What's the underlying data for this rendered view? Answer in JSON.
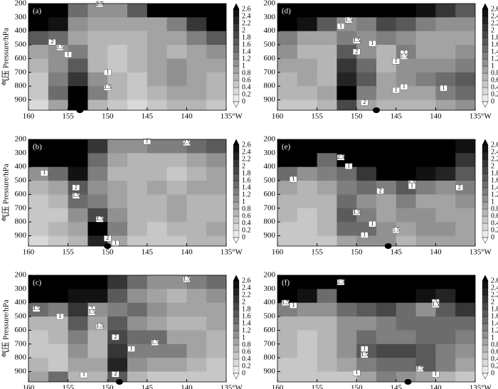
{
  "chart_data": [
    {
      "type": "heatmap",
      "panel_label": "(a)",
      "ylabel": "气压 Pressure/hPa",
      "x_unit": "°W",
      "x": [
        158.75,
        156.25,
        153.75,
        151.25,
        148.75,
        146.25,
        143.75,
        141.25,
        138.75,
        136.25
      ],
      "y": [
        250,
        350,
        450,
        550,
        650,
        750,
        850,
        950
      ],
      "values": [
        [
          2.6,
          2.6,
          1.4,
          1.0,
          1.0,
          1.6,
          2.6,
          2.6,
          2.6,
          2.6
        ],
        [
          2.6,
          2.4,
          1.0,
          0.8,
          0.8,
          0.8,
          0.8,
          1.2,
          2.0,
          2.6
        ],
        [
          1.6,
          1.4,
          0.8,
          0.6,
          0.6,
          0.6,
          0.8,
          0.8,
          1.2,
          1.6
        ],
        [
          0.8,
          1.0,
          1.2,
          0.6,
          0.4,
          0.6,
          0.8,
          0.6,
          0.8,
          1.0
        ],
        [
          0.6,
          1.0,
          1.6,
          0.6,
          0.4,
          0.6,
          0.8,
          1.0,
          0.8,
          0.8
        ],
        [
          0.4,
          1.2,
          2.0,
          1.0,
          0.6,
          0.4,
          0.8,
          1.0,
          0.8,
          0.6
        ],
        [
          0.4,
          1.4,
          2.6,
          1.2,
          0.6,
          0.4,
          0.6,
          0.8,
          0.8,
          0.6
        ],
        [
          0.2,
          0.8,
          2.6,
          0.6,
          0.4,
          0.2,
          0.4,
          0.6,
          0.6,
          0.4
        ]
      ],
      "xlim": [
        160,
        135
      ],
      "ylim": [
        200,
        975
      ],
      "xticks": [
        160,
        155,
        150,
        145,
        140,
        135
      ],
      "yticks": [
        200,
        300,
        400,
        500,
        600,
        700,
        800,
        900
      ],
      "clim": [
        0,
        2.6
      ],
      "cticks": [
        0,
        0.2,
        0.4,
        0.6,
        0.8,
        1,
        1.2,
        1.4,
        1.6,
        1.8,
        2,
        2.2,
        2.4,
        2.6
      ],
      "marker_x": 153.5,
      "annotations": [
        {
          "text": "2.5",
          "x": 151,
          "y": 205
        },
        {
          "text": "2",
          "x": 157,
          "y": 480
        },
        {
          "text": "1.5",
          "x": 156,
          "y": 520
        },
        {
          "text": "1",
          "x": 155,
          "y": 570
        },
        {
          "text": "1",
          "x": 150,
          "y": 700
        },
        {
          "text": "1.5",
          "x": 150,
          "y": 810
        }
      ]
    },
    {
      "type": "heatmap",
      "panel_label": "(d)",
      "x_unit": "°W",
      "x": [
        158.75,
        156.25,
        153.75,
        151.25,
        148.75,
        146.25,
        143.75,
        141.25,
        138.75,
        136.25
      ],
      "y": [
        250,
        350,
        450,
        550,
        650,
        750,
        850,
        950
      ],
      "values": [
        [
          2.6,
          2.6,
          2.6,
          2.6,
          2.6,
          2.6,
          2.6,
          2.4,
          2.0,
          1.6
        ],
        [
          2.6,
          2.4,
          1.6,
          1.0,
          1.2,
          1.8,
          1.6,
          1.2,
          1.0,
          1.0
        ],
        [
          1.2,
          0.8,
          0.8,
          1.2,
          1.0,
          1.2,
          1.0,
          0.8,
          0.8,
          0.8
        ],
        [
          1.0,
          0.6,
          0.6,
          1.6,
          1.0,
          0.6,
          1.2,
          0.8,
          0.8,
          1.0
        ],
        [
          0.8,
          0.8,
          0.6,
          2.0,
          1.4,
          0.6,
          1.0,
          1.0,
          1.0,
          1.2
        ],
        [
          0.6,
          0.8,
          0.6,
          2.2,
          1.6,
          0.8,
          1.0,
          1.2,
          1.4,
          1.6
        ],
        [
          0.6,
          0.6,
          0.8,
          2.6,
          1.2,
          0.8,
          0.8,
          0.8,
          1.2,
          1.4
        ],
        [
          0.4,
          0.4,
          0.6,
          1.8,
          0.8,
          0.6,
          0.6,
          0.6,
          0.8,
          1.0
        ]
      ],
      "xlim": [
        160,
        135
      ],
      "ylim": [
        200,
        975
      ],
      "xticks": [
        160,
        155,
        150,
        145,
        140,
        135
      ],
      "yticks": [
        200,
        300,
        400,
        500,
        600,
        700,
        800,
        900
      ],
      "clim": [
        0,
        2.6
      ],
      "cticks": [
        0,
        0.2,
        0.4,
        0.6,
        0.8,
        1,
        1.2,
        1.4,
        1.6,
        1.8,
        2,
        2.2,
        2.4,
        2.6
      ],
      "marker_x": 147.5,
      "annotations": [
        {
          "text": "1.5",
          "x": 151,
          "y": 320
        },
        {
          "text": "1",
          "x": 152,
          "y": 365
        },
        {
          "text": "1.5",
          "x": 150,
          "y": 470
        },
        {
          "text": "1",
          "x": 148,
          "y": 490
        },
        {
          "text": "2",
          "x": 150,
          "y": 550
        },
        {
          "text": "2",
          "x": 144,
          "y": 560
        },
        {
          "text": "1.5",
          "x": 144,
          "y": 585
        },
        {
          "text": "1",
          "x": 145,
          "y": 620
        },
        {
          "text": "1",
          "x": 144,
          "y": 805
        },
        {
          "text": "1",
          "x": 145,
          "y": 830
        },
        {
          "text": "1",
          "x": 139,
          "y": 815
        },
        {
          "text": "2",
          "x": 149,
          "y": 920
        }
      ]
    },
    {
      "type": "heatmap",
      "panel_label": "(b)",
      "ylabel": "气压 Pressure/hPa",
      "x_unit": "°W",
      "x": [
        158.75,
        156.25,
        153.75,
        151.25,
        148.75,
        146.25,
        143.75,
        141.25,
        138.75,
        136.25
      ],
      "y": [
        250,
        350,
        450,
        550,
        650,
        750,
        850,
        950
      ],
      "values": [
        [
          2.6,
          2.6,
          2.6,
          2.0,
          1.0,
          1.0,
          1.2,
          1.2,
          1.4,
          1.6
        ],
        [
          2.6,
          2.6,
          2.6,
          1.4,
          0.8,
          0.6,
          0.6,
          0.6,
          0.8,
          1.0
        ],
        [
          1.0,
          1.4,
          2.4,
          1.2,
          0.6,
          0.6,
          0.6,
          0.4,
          0.6,
          0.8
        ],
        [
          0.6,
          0.8,
          1.6,
          1.0,
          0.8,
          0.6,
          0.8,
          0.6,
          0.8,
          0.8
        ],
        [
          0.4,
          0.6,
          1.4,
          1.2,
          0.8,
          0.6,
          0.6,
          0.8,
          0.6,
          0.6
        ],
        [
          0.4,
          0.4,
          1.0,
          1.8,
          1.0,
          0.6,
          0.6,
          0.8,
          0.6,
          0.6
        ],
        [
          0.4,
          0.6,
          0.8,
          2.6,
          1.2,
          0.6,
          0.4,
          0.6,
          0.6,
          0.8
        ],
        [
          0.2,
          0.4,
          0.6,
          2.2,
          0.8,
          0.4,
          0.4,
          0.4,
          0.6,
          0.6
        ]
      ],
      "xlim": [
        160,
        135
      ],
      "ylim": [
        200,
        975
      ],
      "xticks": [
        160,
        155,
        150,
        145,
        140,
        135
      ],
      "yticks": [
        200,
        300,
        400,
        500,
        600,
        700,
        800,
        900
      ],
      "clim": [
        0,
        2.6
      ],
      "cticks": [
        0,
        0.2,
        0.4,
        0.6,
        0.8,
        1,
        1.2,
        1.4,
        1.6,
        1.8,
        2,
        2.2,
        2.4,
        2.6
      ],
      "marker_x": 150,
      "annotations": [
        {
          "text": "1",
          "x": 145,
          "y": 215
        },
        {
          "text": "2.5",
          "x": 140,
          "y": 225
        },
        {
          "text": "1",
          "x": 158,
          "y": 445
        },
        {
          "text": "2",
          "x": 154,
          "y": 550
        },
        {
          "text": "1.5",
          "x": 154,
          "y": 610
        },
        {
          "text": "1.5",
          "x": 151,
          "y": 780
        },
        {
          "text": "2",
          "x": 150,
          "y": 920
        },
        {
          "text": "1",
          "x": 149,
          "y": 955
        }
      ]
    },
    {
      "type": "heatmap",
      "panel_label": "(e)",
      "x_unit": "°W",
      "x": [
        158.75,
        156.25,
        153.75,
        151.25,
        148.75,
        146.25,
        143.75,
        141.25,
        138.75,
        136.25
      ],
      "y": [
        250,
        350,
        450,
        550,
        650,
        750,
        850,
        950
      ],
      "values": [
        [
          2.6,
          2.6,
          2.6,
          2.6,
          2.6,
          2.6,
          2.6,
          2.6,
          2.6,
          2.4
        ],
        [
          2.6,
          2.6,
          1.4,
          2.6,
          2.6,
          2.6,
          2.6,
          2.6,
          2.6,
          2.0
        ],
        [
          1.4,
          1.0,
          1.2,
          1.4,
          2.0,
          2.6,
          2.6,
          2.4,
          2.2,
          1.6
        ],
        [
          0.8,
          0.6,
          0.8,
          1.2,
          1.4,
          1.2,
          1.6,
          1.2,
          1.0,
          1.2
        ],
        [
          0.6,
          0.6,
          0.6,
          1.4,
          1.0,
          0.8,
          1.2,
          0.8,
          0.8,
          1.0
        ],
        [
          0.6,
          0.4,
          0.6,
          1.6,
          1.2,
          0.8,
          1.0,
          1.0,
          0.8,
          0.8
        ],
        [
          0.4,
          0.4,
          0.6,
          1.4,
          1.4,
          1.0,
          0.8,
          1.0,
          1.0,
          0.8
        ],
        [
          0.4,
          0.4,
          0.4,
          0.8,
          1.0,
          1.0,
          0.6,
          0.8,
          0.8,
          0.8
        ]
      ],
      "xlim": [
        160,
        135
      ],
      "ylim": [
        200,
        975
      ],
      "xticks": [
        160,
        155,
        150,
        145,
        140,
        135
      ],
      "yticks": [
        200,
        300,
        400,
        500,
        600,
        700,
        800,
        900
      ],
      "clim": [
        0,
        2.6
      ],
      "cticks": [
        0,
        0.2,
        0.4,
        0.6,
        0.8,
        1,
        1.2,
        1.4,
        1.6,
        1.8,
        2,
        2.2,
        2.4,
        2.6
      ],
      "marker_x": 146,
      "annotations": [
        {
          "text": "2.5",
          "x": 152,
          "y": 330
        },
        {
          "text": "1",
          "x": 151,
          "y": 395
        },
        {
          "text": "1",
          "x": 158,
          "y": 490
        },
        {
          "text": "2",
          "x": 147,
          "y": 575
        },
        {
          "text": "1.5",
          "x": 143,
          "y": 520
        },
        {
          "text": "1",
          "x": 143,
          "y": 540
        },
        {
          "text": "2",
          "x": 137,
          "y": 550
        },
        {
          "text": "1.5",
          "x": 150,
          "y": 730
        },
        {
          "text": "1",
          "x": 148,
          "y": 815
        },
        {
          "text": "1",
          "x": 149,
          "y": 895
        },
        {
          "text": "1.5",
          "x": 145,
          "y": 860
        }
      ]
    },
    {
      "type": "heatmap",
      "panel_label": "(c)",
      "ylabel": "气压 Pressure/hPa",
      "x_unit": "°W",
      "x": [
        158.75,
        156.25,
        153.75,
        151.25,
        148.75,
        146.25,
        143.75,
        141.25,
        138.75,
        136.25
      ],
      "y": [
        250,
        350,
        450,
        550,
        650,
        750,
        850,
        950
      ],
      "values": [
        [
          2.6,
          2.6,
          2.6,
          2.6,
          2.0,
          1.4,
          1.0,
          1.0,
          1.2,
          1.4
        ],
        [
          2.6,
          2.6,
          2.4,
          2.4,
          1.6,
          1.0,
          0.8,
          0.6,
          0.8,
          1.0
        ],
        [
          1.4,
          1.2,
          2.0,
          1.0,
          1.2,
          1.4,
          1.0,
          0.8,
          0.8,
          0.8
        ],
        [
          0.6,
          0.6,
          1.6,
          0.8,
          1.6,
          1.0,
          0.8,
          0.6,
          0.6,
          0.8
        ],
        [
          0.4,
          0.6,
          1.2,
          0.6,
          1.8,
          1.4,
          1.4,
          0.8,
          0.8,
          0.6
        ],
        [
          0.4,
          0.4,
          1.0,
          0.6,
          2.0,
          1.2,
          1.2,
          1.2,
          0.8,
          0.6
        ],
        [
          0.6,
          0.4,
          0.8,
          0.8,
          2.2,
          1.0,
          0.8,
          0.8,
          0.6,
          0.4
        ],
        [
          0.8,
          1.4,
          0.6,
          0.6,
          1.6,
          0.6,
          0.4,
          0.4,
          0.4,
          0.4
        ]
      ],
      "xlim": [
        160,
        135
      ],
      "ylim": [
        200,
        975
      ],
      "xticks": [
        160,
        155,
        150,
        145,
        140,
        135
      ],
      "yticks": [
        200,
        300,
        400,
        500,
        600,
        700,
        800,
        900
      ],
      "clim": [
        0,
        2.6
      ],
      "cticks": [
        0,
        0.2,
        0.4,
        0.6,
        0.8,
        1,
        1.2,
        1.4,
        1.6,
        1.8,
        2,
        2.2,
        2.4,
        2.6
      ],
      "marker_x": 148.5,
      "annotations": [
        {
          "text": "1.5",
          "x": 140,
          "y": 230
        },
        {
          "text": "1.5",
          "x": 159,
          "y": 445
        },
        {
          "text": "1",
          "x": 156,
          "y": 500
        },
        {
          "text": "2",
          "x": 152,
          "y": 445
        },
        {
          "text": "1.5",
          "x": 152,
          "y": 470
        },
        {
          "text": "1.5",
          "x": 151,
          "y": 570
        },
        {
          "text": "2",
          "x": 149,
          "y": 650
        },
        {
          "text": "1",
          "x": 147,
          "y": 735
        },
        {
          "text": "1.5",
          "x": 144,
          "y": 690
        },
        {
          "text": "1",
          "x": 153,
          "y": 925
        },
        {
          "text": "2",
          "x": 149,
          "y": 920
        }
      ]
    },
    {
      "type": "heatmap",
      "panel_label": "(f)",
      "x_unit": "°W",
      "x": [
        158.75,
        156.25,
        153.75,
        151.25,
        148.75,
        146.25,
        143.75,
        141.25,
        138.75,
        136.25
      ],
      "y": [
        250,
        350,
        450,
        550,
        650,
        750,
        850,
        950
      ],
      "values": [
        [
          2.6,
          2.6,
          2.6,
          2.6,
          2.6,
          2.6,
          2.6,
          2.6,
          2.6,
          2.6
        ],
        [
          2.6,
          2.4,
          1.4,
          2.6,
          2.6,
          2.6,
          2.6,
          2.4,
          2.2,
          2.6
        ],
        [
          1.2,
          1.0,
          1.0,
          1.4,
          1.6,
          1.8,
          1.4,
          1.0,
          1.6,
          2.0
        ],
        [
          0.6,
          0.6,
          0.6,
          1.0,
          1.0,
          1.2,
          1.4,
          1.4,
          1.4,
          1.4
        ],
        [
          0.6,
          0.4,
          0.6,
          1.0,
          1.4,
          1.2,
          1.2,
          1.4,
          1.4,
          1.2
        ],
        [
          0.6,
          0.4,
          0.6,
          1.0,
          1.6,
          1.8,
          1.8,
          1.6,
          1.2,
          1.0
        ],
        [
          0.4,
          0.4,
          0.6,
          0.8,
          1.2,
          1.4,
          1.4,
          1.6,
          1.2,
          0.8
        ],
        [
          0.4,
          0.4,
          0.4,
          0.4,
          0.8,
          1.2,
          1.0,
          0.8,
          0.6,
          0.4
        ]
      ],
      "xlim": [
        160,
        135
      ],
      "ylim": [
        200,
        975
      ],
      "xticks": [
        160,
        155,
        150,
        145,
        140,
        135
      ],
      "yticks": [
        200,
        300,
        400,
        500,
        600,
        700,
        800,
        900
      ],
      "clim": [
        0,
        2.6
      ],
      "cticks": [
        0,
        0.2,
        0.4,
        0.6,
        0.8,
        1,
        1.2,
        1.4,
        1.6,
        1.8,
        2,
        2.2,
        2.4,
        2.6
      ],
      "marker_x": 143.5,
      "annotations": [
        {
          "text": "2.5",
          "x": 152,
          "y": 250
        },
        {
          "text": "1.5",
          "x": 159,
          "y": 400
        },
        {
          "text": "1",
          "x": 158,
          "y": 420
        },
        {
          "text": "2",
          "x": 140,
          "y": 395
        },
        {
          "text": "1.5",
          "x": 140,
          "y": 415
        },
        {
          "text": "1",
          "x": 149,
          "y": 735
        },
        {
          "text": "1.5",
          "x": 149,
          "y": 780
        },
        {
          "text": "1",
          "x": 150,
          "y": 910
        },
        {
          "text": "1.5",
          "x": 142,
          "y": 880
        },
        {
          "text": "1",
          "x": 140,
          "y": 920
        }
      ]
    }
  ]
}
